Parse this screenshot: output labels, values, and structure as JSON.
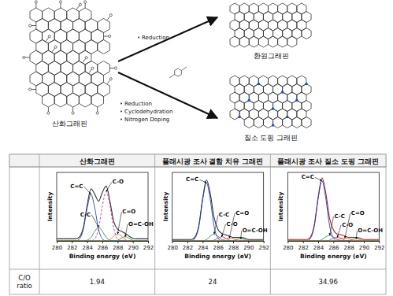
{
  "diagram": {
    "start": "산화그래핀",
    "products": [
      {
        "label": "환원그래핀",
        "steps": [
          "Reduction"
        ]
      },
      {
        "label": "질소 도핑 그래핀",
        "steps": [
          "Reduction",
          "Cyclodehydration",
          "Nitrogen Doping"
        ]
      }
    ]
  },
  "table": {
    "columns": [
      "산화그래핀",
      "플래시광 조사 결함 치유 그래핀",
      "플래시광 조사 질소 도핑 그래핀"
    ],
    "row_label": "C/O ratio",
    "values": [
      1.94,
      24,
      34.96
    ]
  },
  "chart_data": [
    {
      "type": "line",
      "xlabel": "Binding energy (eV)",
      "ylabel": "Intensity",
      "tick_labels": "x",
      "x": [
        280,
        280.5,
        281,
        281.5,
        282,
        282.5,
        283,
        283.5,
        284,
        284.5,
        285,
        285.5,
        286,
        286.5,
        287,
        287.5,
        288,
        288.5,
        289,
        289.5,
        290,
        290.5,
        291,
        291.5,
        292
      ],
      "xlim": [
        280,
        292
      ],
      "xticks": [
        280,
        282,
        284,
        286,
        288,
        290,
        292
      ],
      "ylim": [
        0,
        1
      ],
      "series": [
        {
          "color": "#333333",
          "values": [
            0.03,
            0.03,
            0.03,
            0.03,
            0.03,
            0.03,
            0.06,
            0.2,
            0.52,
            0.76,
            0.68,
            0.58,
            0.71,
            0.8,
            0.57,
            0.28,
            0.17,
            0.14,
            0.11,
            0.07,
            0.04,
            0.03,
            0.03,
            0.03,
            0.03
          ]
        },
        {
          "name": "C=C",
          "color": "#2040c0",
          "values": [
            0,
            0,
            0,
            0,
            0,
            0,
            0.03,
            0.17,
            0.48,
            0.68,
            0.48,
            0.17,
            0.03,
            0,
            0,
            0,
            0,
            0,
            0,
            0,
            0,
            0,
            0,
            0,
            0
          ]
        },
        {
          "name": "C-C",
          "color": "#2e8b57",
          "values": [
            0,
            0,
            0,
            0,
            0,
            0,
            0,
            0,
            0.01,
            0.05,
            0.14,
            0.2,
            0.14,
            0.05,
            0.01,
            0,
            0,
            0,
            0,
            0,
            0,
            0,
            0,
            0,
            0
          ]
        },
        {
          "name": "C-O",
          "color": "#d0309a",
          "line_style": "dashed",
          "values": [
            0,
            0,
            0,
            0,
            0,
            0,
            0,
            0,
            0,
            0,
            0.03,
            0.18,
            0.51,
            0.72,
            0.51,
            0.18,
            0.03,
            0,
            0,
            0,
            0,
            0,
            0,
            0,
            0
          ]
        },
        {
          "name": "C=O",
          "color": "#e07020",
          "values": [
            0,
            0,
            0,
            0,
            0,
            0,
            0,
            0,
            0,
            0,
            0,
            0,
            0,
            0,
            0.02,
            0.07,
            0.1,
            0.07,
            0.02,
            0,
            0,
            0,
            0,
            0,
            0
          ]
        },
        {
          "name": "O=C-OH",
          "color": "#3a9a3a",
          "values": [
            0,
            0,
            0,
            0,
            0,
            0,
            0,
            0,
            0,
            0,
            0,
            0,
            0,
            0,
            0,
            0,
            0.01,
            0.04,
            0.06,
            0.04,
            0.01,
            0,
            0,
            0,
            0
          ]
        }
      ]
    },
    {
      "type": "line",
      "xlabel": "Binding energy (eV)",
      "ylabel": "Intensity",
      "tick_labels": "x",
      "x": [
        280,
        280.5,
        281,
        281.5,
        282,
        282.5,
        283,
        283.5,
        284,
        284.5,
        285,
        285.5,
        286,
        286.5,
        287,
        287.5,
        288,
        288.5,
        289,
        289.5,
        290,
        290.5,
        291,
        291.5,
        292
      ],
      "xlim": [
        280,
        292
      ],
      "xticks": [
        280,
        282,
        284,
        286,
        288,
        290,
        292
      ],
      "ylim": [
        0,
        1
      ],
      "series": [
        {
          "color": "#333333",
          "values": [
            0.02,
            0.02,
            0.02,
            0.02,
            0.02,
            0.02,
            0.06,
            0.23,
            0.62,
            0.89,
            0.69,
            0.34,
            0.17,
            0.11,
            0.09,
            0.07,
            0.05,
            0.05,
            0.05,
            0.04,
            0.02,
            0.02,
            0.02,
            0.02,
            0.02
          ]
        },
        {
          "name": "C=C",
          "color": "#2040c0",
          "values": [
            0,
            0,
            0,
            0,
            0,
            0,
            0.04,
            0.21,
            0.6,
            0.85,
            0.6,
            0.21,
            0.04,
            0,
            0,
            0,
            0,
            0,
            0,
            0,
            0,
            0,
            0,
            0,
            0
          ]
        },
        {
          "name": "C-C",
          "color": "#2e8b57",
          "values": [
            0,
            0,
            0,
            0,
            0,
            0,
            0,
            0,
            0,
            0.02,
            0.07,
            0.1,
            0.07,
            0.02,
            0,
            0,
            0,
            0,
            0,
            0,
            0,
            0,
            0,
            0,
            0
          ]
        },
        {
          "name": "C-O",
          "color": "#d0309a",
          "values": [
            0,
            0,
            0,
            0,
            0,
            0,
            0,
            0,
            0,
            0,
            0,
            0.01,
            0.04,
            0.06,
            0.04,
            0.01,
            0,
            0,
            0,
            0,
            0,
            0,
            0,
            0,
            0
          ]
        },
        {
          "name": "C=O",
          "color": "#e07020",
          "values": [
            0,
            0,
            0,
            0,
            0,
            0,
            0,
            0,
            0,
            0,
            0,
            0,
            0,
            0.01,
            0.03,
            0.04,
            0.03,
            0.01,
            0,
            0,
            0,
            0,
            0,
            0,
            0
          ]
        },
        {
          "name": "O=C-OH",
          "color": "#3a9a3a",
          "values": [
            0,
            0,
            0,
            0,
            0,
            0,
            0,
            0,
            0,
            0,
            0,
            0,
            0,
            0,
            0,
            0,
            0,
            0.02,
            0.03,
            0.02,
            0,
            0,
            0,
            0,
            0
          ]
        }
      ]
    },
    {
      "type": "line",
      "xlabel": "Binding energy (eV)",
      "ylabel": "Intensity",
      "tick_labels": "x",
      "x": [
        280,
        280.5,
        281,
        281.5,
        282,
        282.5,
        283,
        283.5,
        284,
        284.5,
        285,
        285.5,
        286,
        286.5,
        287,
        287.5,
        288,
        288.5,
        289,
        289.5,
        290,
        290.5,
        291,
        291.5,
        292
      ],
      "xlim": [
        280,
        292
      ],
      "xticks": [
        280,
        282,
        284,
        286,
        288,
        290,
        292
      ],
      "ylim": [
        0,
        1
      ],
      "series": [
        {
          "color": "#b02020",
          "values": [
            0.02,
            0.02,
            0.02,
            0.02,
            0.02,
            0.02,
            0.06,
            0.24,
            0.64,
            0.92,
            0.7,
            0.33,
            0.16,
            0.1,
            0.09,
            0.07,
            0.05,
            0.05,
            0.05,
            0.04,
            0.02,
            0.02,
            0.02,
            0.02,
            0.02
          ]
        },
        {
          "name": "C=C",
          "color": "#2040c0",
          "values": [
            0,
            0,
            0,
            0,
            0,
            0,
            0.04,
            0.22,
            0.62,
            0.88,
            0.62,
            0.22,
            0.04,
            0,
            0,
            0,
            0,
            0,
            0,
            0,
            0,
            0,
            0,
            0,
            0
          ]
        },
        {
          "name": "C-C",
          "color": "#2e8b57",
          "values": [
            0,
            0,
            0,
            0,
            0,
            0,
            0,
            0,
            0,
            0.02,
            0.06,
            0.08,
            0.06,
            0.02,
            0,
            0,
            0,
            0,
            0,
            0,
            0,
            0,
            0,
            0,
            0
          ]
        },
        {
          "name": "C-O",
          "color": "#d0309a",
          "values": [
            0,
            0,
            0,
            0,
            0,
            0,
            0,
            0,
            0,
            0,
            0,
            0.01,
            0.04,
            0.05,
            0.04,
            0.01,
            0,
            0,
            0,
            0,
            0,
            0,
            0,
            0,
            0
          ]
        },
        {
          "name": "C=O",
          "color": "#e07020",
          "values": [
            0,
            0,
            0,
            0,
            0,
            0,
            0,
            0,
            0,
            0,
            0,
            0,
            0,
            0.01,
            0.03,
            0.04,
            0.03,
            0.01,
            0,
            0,
            0,
            0,
            0,
            0,
            0
          ]
        },
        {
          "name": "O=C-OH",
          "color": "#3a9a3a",
          "values": [
            0,
            0,
            0,
            0,
            0,
            0,
            0,
            0,
            0,
            0,
            0,
            0,
            0,
            0,
            0,
            0,
            0,
            0.02,
            0.03,
            0.02,
            0,
            0,
            0,
            0,
            0
          ]
        }
      ]
    }
  ]
}
